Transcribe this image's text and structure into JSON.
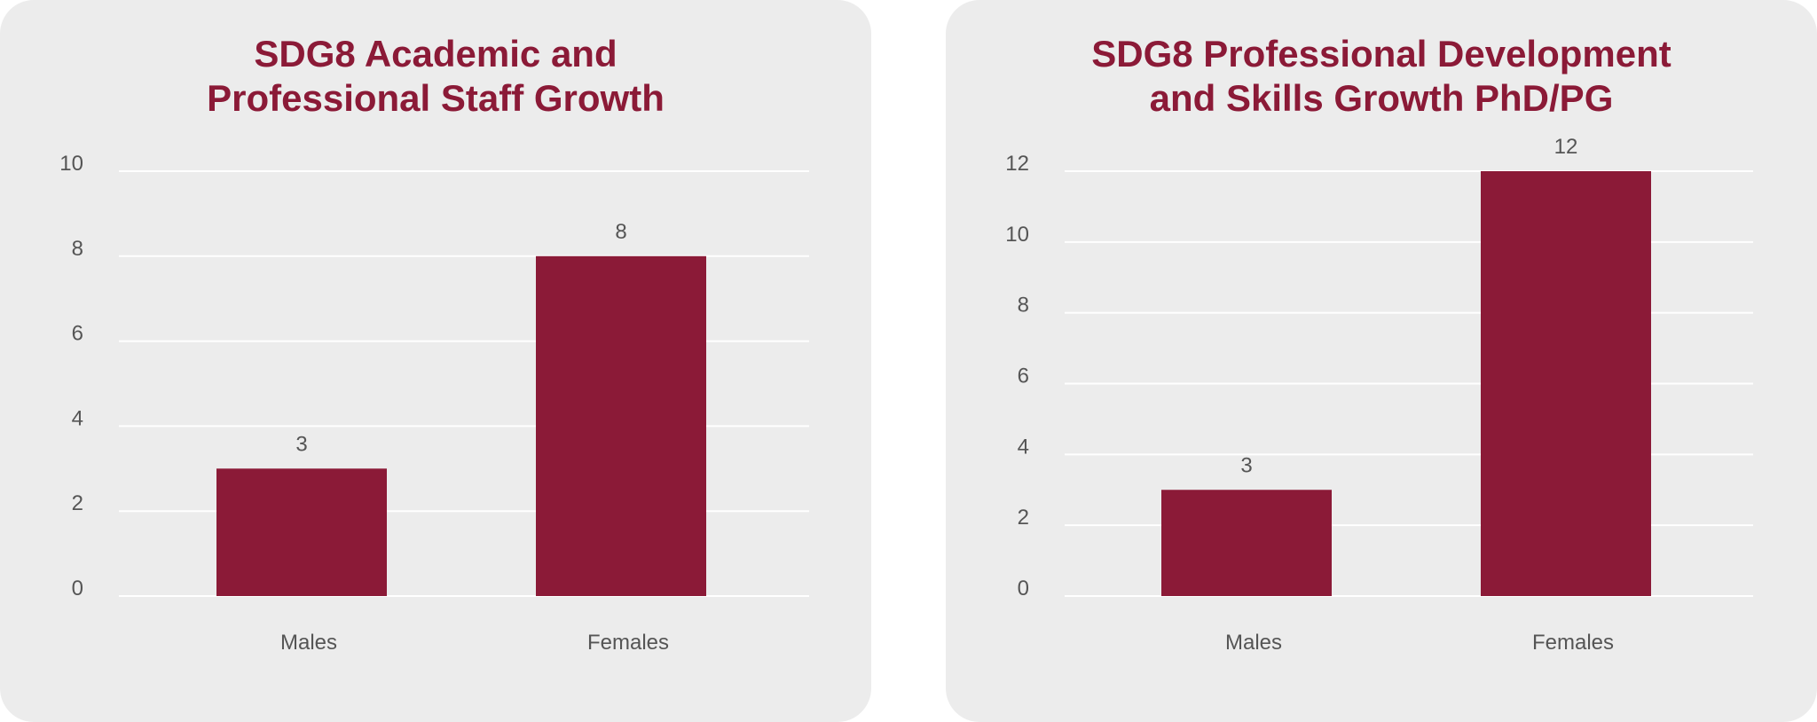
{
  "colors": {
    "bar": "#8b1a37",
    "title": "#8b1a37",
    "text": "#555555",
    "gridline": "#ffffff",
    "panel_background": "#ececec"
  },
  "chart_data": [
    {
      "type": "bar",
      "title_lines": [
        "SDG8 Academic and",
        "Professional Staff Growth"
      ],
      "categories": [
        "Males",
        "Females"
      ],
      "values": [
        3,
        8
      ],
      "data_labels": [
        "3",
        "8"
      ],
      "yticks": [
        0,
        2,
        4,
        6,
        8,
        10
      ],
      "ylim": [
        0,
        10
      ],
      "grid": true
    },
    {
      "type": "bar",
      "title_lines": [
        "SDG8 Professional Development",
        "and Skills Growth PhD/PG"
      ],
      "categories": [
        "Males",
        "Females"
      ],
      "values": [
        3,
        12
      ],
      "data_labels": [
        "3",
        "12"
      ],
      "yticks": [
        0,
        2,
        4,
        6,
        8,
        10,
        12
      ],
      "ylim": [
        0,
        12
      ],
      "grid": true
    }
  ]
}
